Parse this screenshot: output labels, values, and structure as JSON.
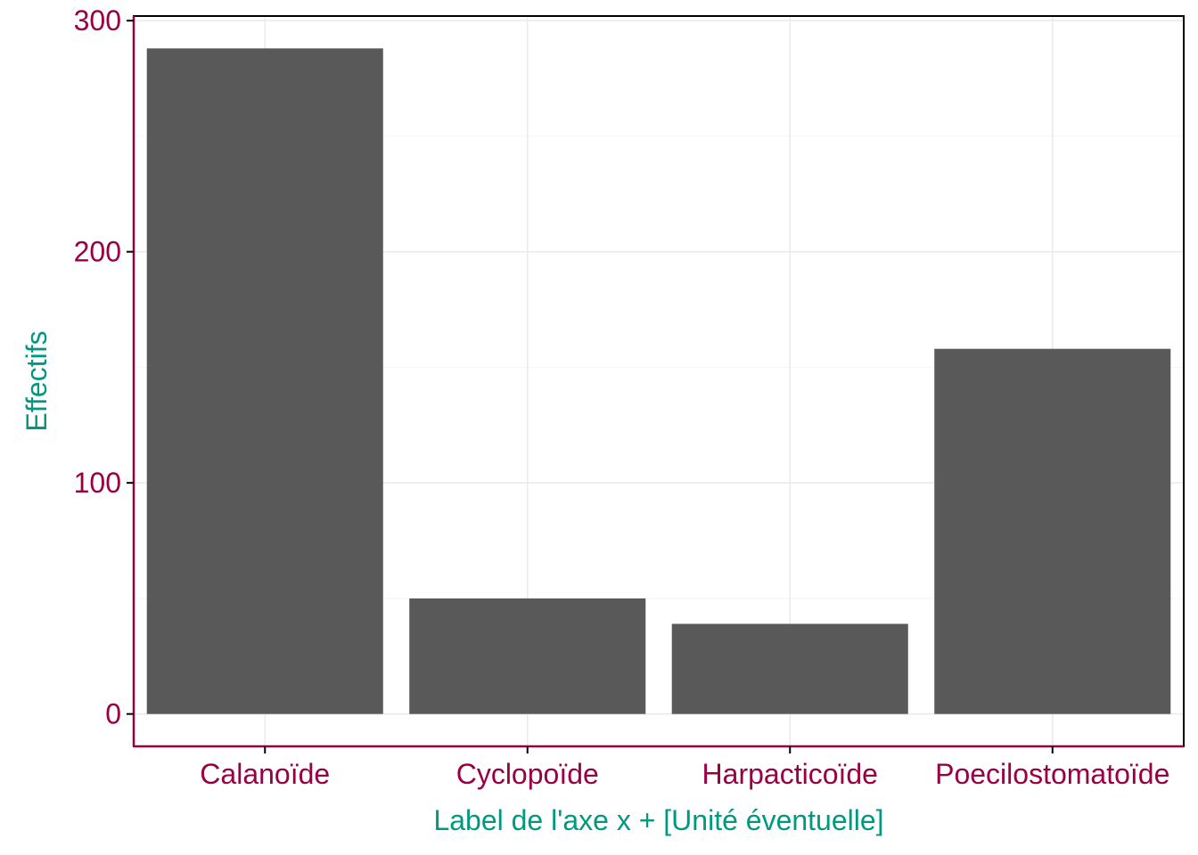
{
  "chart_data": {
    "type": "bar",
    "categories": [
      "Calanoïde",
      "Cyclopoïde",
      "Harpacticoïde",
      "Poecilostomatoïde"
    ],
    "values": [
      288,
      50,
      39,
      158
    ],
    "title": "",
    "xlabel": "Label de l'axe x  + [Unité éventuelle]",
    "ylabel": "Effectifs",
    "ylim": [
      -14,
      302
    ],
    "yticks": [
      0,
      100,
      200,
      300
    ],
    "grid": true
  },
  "colors": {
    "bar": "#595959",
    "axis": "#990044",
    "tick_text": "#990044",
    "axis_title": "#009980",
    "grid_major": "#ebebeb",
    "grid_minor": "#f5f5f5",
    "panel_border": "#000000"
  }
}
